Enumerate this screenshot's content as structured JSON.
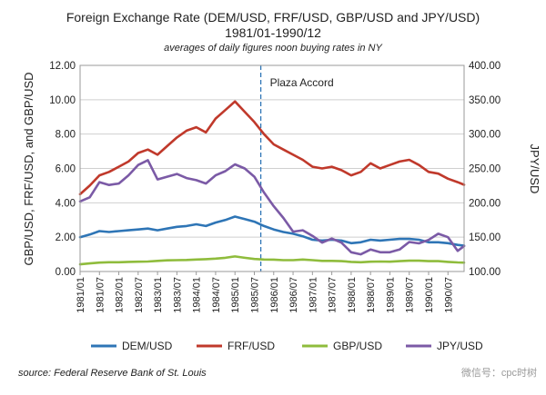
{
  "chart_data": {
    "type": "line",
    "title": "Foreign Exchange Rate (DEM/USD, FRF/USD,  GBP/USD and JPY/USD)",
    "title_line2": "1981/01-1990/12",
    "subtitle": "averages of daily figures noon buying rates in NY",
    "ylabel": "GBP/USD, FRF/USD,  and GBP/USD",
    "y2label": "JPY/USD",
    "ylim": [
      0,
      12
    ],
    "y2lim": [
      100,
      400
    ],
    "yticks": [
      "0.00",
      "2.00",
      "4.00",
      "6.00",
      "8.00",
      "10.00",
      "12.00"
    ],
    "y2ticks": [
      "100.00",
      "150.00",
      "200.00",
      "250.00",
      "300.00",
      "350.00",
      "400.00"
    ],
    "xticks": [
      "1981/01",
      "1981/07",
      "1982/01",
      "1982/07",
      "1983/01",
      "1983/07",
      "1984/01",
      "1984/07",
      "1985/01",
      "1985/07",
      "1986/01",
      "1986/07",
      "1987/01",
      "1987/07",
      "1988/01",
      "1988/07",
      "1989/01",
      "1989/07",
      "1990/01",
      "1990/07"
    ],
    "grid": true,
    "legend_position": "bottom",
    "annotation": {
      "label": "Plaza Accord",
      "x": "1985/09"
    },
    "source": "source: Federal Reserve Bank of St. Louis",
    "x": [
      "1981/01",
      "1981/04",
      "1981/07",
      "1981/10",
      "1982/01",
      "1982/04",
      "1982/07",
      "1982/10",
      "1983/01",
      "1983/04",
      "1983/07",
      "1983/10",
      "1984/01",
      "1984/04",
      "1984/07",
      "1984/10",
      "1985/01",
      "1985/04",
      "1985/07",
      "1985/10",
      "1986/01",
      "1986/04",
      "1986/07",
      "1986/10",
      "1987/01",
      "1987/04",
      "1987/07",
      "1987/10",
      "1988/01",
      "1988/04",
      "1988/07",
      "1988/10",
      "1989/01",
      "1989/04",
      "1989/07",
      "1989/10",
      "1990/01",
      "1990/04",
      "1990/07",
      "1990/10",
      "1990/12"
    ],
    "series": [
      {
        "name": "DEM/USD",
        "axis": "left",
        "color": "#2e75b6",
        "values": [
          2.0,
          2.15,
          2.35,
          2.3,
          2.35,
          2.4,
          2.45,
          2.5,
          2.4,
          2.5,
          2.6,
          2.65,
          2.75,
          2.65,
          2.85,
          3.0,
          3.2,
          3.05,
          2.9,
          2.65,
          2.45,
          2.3,
          2.2,
          2.05,
          1.85,
          1.8,
          1.85,
          1.8,
          1.65,
          1.7,
          1.85,
          1.8,
          1.85,
          1.9,
          1.9,
          1.85,
          1.7,
          1.7,
          1.65,
          1.55,
          1.5
        ]
      },
      {
        "name": "FRF/USD",
        "axis": "left",
        "color": "#c0392b",
        "values": [
          4.5,
          5.0,
          5.6,
          5.8,
          6.1,
          6.4,
          6.9,
          7.1,
          6.8,
          7.3,
          7.8,
          8.2,
          8.4,
          8.1,
          8.9,
          9.4,
          9.9,
          9.3,
          8.7,
          8.0,
          7.4,
          7.1,
          6.8,
          6.5,
          6.1,
          6.0,
          6.1,
          5.9,
          5.6,
          5.8,
          6.3,
          6.0,
          6.2,
          6.4,
          6.5,
          6.2,
          5.8,
          5.7,
          5.4,
          5.2,
          5.05
        ]
      },
      {
        "name": "GBP/USD",
        "axis": "left",
        "color": "#8fbc3c",
        "values": [
          0.42,
          0.47,
          0.52,
          0.54,
          0.54,
          0.56,
          0.57,
          0.58,
          0.62,
          0.65,
          0.66,
          0.67,
          0.7,
          0.72,
          0.75,
          0.8,
          0.88,
          0.8,
          0.73,
          0.7,
          0.69,
          0.66,
          0.66,
          0.7,
          0.66,
          0.62,
          0.62,
          0.6,
          0.56,
          0.54,
          0.57,
          0.58,
          0.57,
          0.6,
          0.63,
          0.63,
          0.6,
          0.6,
          0.56,
          0.53,
          0.52
        ]
      },
      {
        "name": "JPY/USD",
        "axis": "right",
        "color": "#7b5aa6",
        "values": [
          202,
          208,
          230,
          226,
          228,
          240,
          255,
          262,
          234,
          238,
          242,
          236,
          233,
          228,
          240,
          246,
          256,
          250,
          238,
          215,
          195,
          178,
          158,
          160,
          152,
          142,
          148,
          142,
          128,
          125,
          132,
          128,
          128,
          132,
          143,
          141,
          146,
          155,
          150,
          130,
          137
        ]
      }
    ]
  },
  "watermark": "微信号：cpc时树"
}
